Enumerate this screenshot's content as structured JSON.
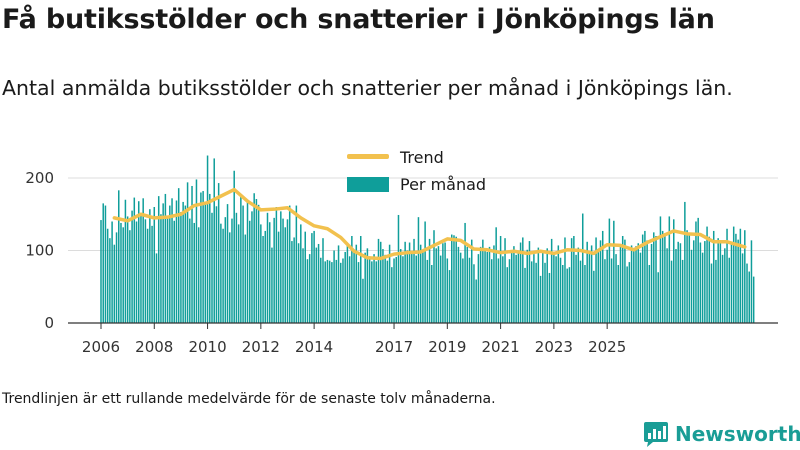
{
  "header": {
    "title": "Få butiksstölder och snatterier i Jönköpings län",
    "subtitle": "Antal anmälda butiksstölder och snatterier per månad i Jönköpings län."
  },
  "footer": {
    "note": "Trendlinjen är ett rullande medelvärde för de senaste tolv månaderna.",
    "brand": "Newsworthy"
  },
  "colors": {
    "bars": "#0f9e9a",
    "trend": "#f2c14e",
    "grid": "#dcdcdc",
    "brand": "#1a9d96"
  },
  "chart_data": {
    "type": "bar",
    "title": "",
    "xlabel": "",
    "ylabel": "",
    "ylim": [
      0,
      235
    ],
    "yticks": [
      0,
      100,
      200
    ],
    "x_tick_labels": [
      "2006",
      "2008",
      "2010",
      "2012",
      "2014",
      "2017",
      "2019",
      "2021",
      "2023",
      "2025"
    ],
    "grid": true,
    "legend": {
      "placement": "top-center",
      "entries": [
        "Trend",
        "Per månad"
      ]
    },
    "start_month": "2006-01",
    "series": [
      {
        "name": "Per månad",
        "type": "bar",
        "values": [
          142,
          165,
          162,
          130,
          117,
          140,
          108,
          125,
          183,
          138,
          132,
          170,
          147,
          128,
          155,
          173,
          140,
          168,
          150,
          172,
          143,
          130,
          157,
          134,
          160,
          96,
          175,
          150,
          165,
          178,
          148,
          162,
          172,
          141,
          169,
          186,
          153,
          167,
          162,
          194,
          144,
          189,
          138,
          198,
          132,
          180,
          182,
          164,
          231,
          178,
          152,
          227,
          161,
          193,
          137,
          130,
          146,
          164,
          125,
          144,
          210,
          152,
          136,
          176,
          162,
          122,
          170,
          141,
          154,
          179,
          171,
          163,
          136,
          120,
          127,
          152,
          139,
          104,
          145,
          160,
          126,
          154,
          144,
          132,
          143,
          162,
          113,
          118,
          162,
          110,
          136,
          103,
          126,
          88,
          95,
          124,
          127,
          104,
          109,
          90,
          117,
          85,
          87,
          86,
          84,
          100,
          87,
          107,
          83,
          89,
          98,
          110,
          92,
          120,
          99,
          108,
          84,
          120,
          61,
          97,
          103,
          92,
          85,
          95,
          85,
          116,
          112,
          102,
          94,
          86,
          108,
          77,
          89,
          91,
          149,
          102,
          92,
          112,
          100,
          111,
          97,
          116,
          93,
          146,
          108,
          101,
          140,
          87,
          116,
          80,
          128,
          103,
          106,
          93,
          110,
          111,
          89,
          73,
          122,
          121,
          119,
          105,
          97,
          89,
          138,
          105,
          90,
          115,
          81,
          60,
          95,
          105,
          115,
          103,
          98,
          105,
          88,
          107,
          132,
          89,
          120,
          92,
          117,
          77,
          88,
          99,
          106,
          94,
          97,
          111,
          118,
          76,
          101,
          113,
          85,
          95,
          83,
          104,
          65,
          98,
          83,
          103,
          69,
          116,
          94,
          92,
          107,
          90,
          80,
          118,
          75,
          77,
          117,
          120,
          94,
          104,
          86,
          151,
          80,
          112,
          99,
          107,
          72,
          118,
          102,
          114,
          127,
          88,
          101,
          144,
          89,
          141,
          95,
          80,
          109,
          120,
          115,
          78,
          84,
          107,
          101,
          106,
          110,
          97,
          122,
          127,
          114,
          80,
          109,
          125,
          120,
          70,
          147,
          127,
          123,
          103,
          147,
          86,
          143,
          102,
          112,
          110,
          87,
          167,
          128,
          124,
          101,
          114,
          140,
          145,
          111,
          97,
          113,
          133,
          119,
          82,
          127,
          87,
          117,
          110,
          94,
          103,
          130,
          90,
          110,
          133,
          123,
          115,
          130,
          96,
          128,
          82,
          71,
          114,
          64
        ]
      },
      {
        "name": "Trend",
        "type": "line",
        "x_index": [
          6,
          12,
          18,
          24,
          30,
          36,
          42,
          48,
          54,
          60,
          66,
          72,
          78,
          84,
          90,
          96,
          102,
          108,
          114,
          120,
          126,
          132,
          138,
          144,
          150,
          156,
          162,
          168,
          174,
          180,
          186,
          192,
          198,
          204,
          210,
          216,
          222,
          228,
          234,
          240,
          246,
          252,
          258,
          264,
          270,
          276,
          282,
          290
        ],
        "values": [
          145,
          141,
          150,
          145,
          146,
          150,
          162,
          166,
          175,
          184,
          168,
          156,
          157,
          159,
          145,
          134,
          130,
          118,
          99,
          90,
          89,
          95,
          97,
          98,
          107,
          116,
          114,
          102,
          101,
          97,
          99,
          96,
          99,
          96,
          101,
          100,
          96,
          108,
          107,
          101,
          111,
          119,
          127,
          123,
          122,
          112,
          112,
          105
        ]
      }
    ]
  }
}
